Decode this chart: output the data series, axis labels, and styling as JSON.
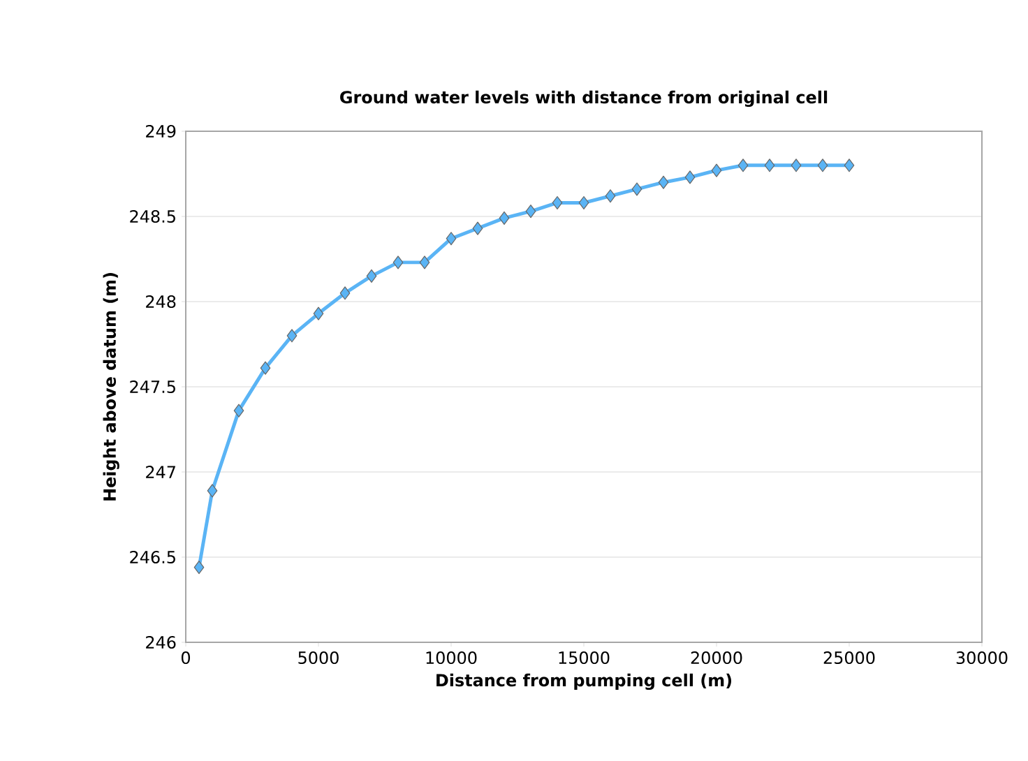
{
  "chart_data": {
    "type": "line",
    "title": "Ground water levels with distance from original cell",
    "xlabel": "Distance from pumping cell (m)",
    "ylabel": "Height above datum (m)",
    "x": [
      500,
      1000,
      2000,
      3000,
      4000,
      5000,
      6000,
      7000,
      8000,
      9000,
      10000,
      11000,
      12000,
      13000,
      14000,
      15000,
      16000,
      17000,
      18000,
      19000,
      20000,
      21000,
      22000,
      23000,
      24000,
      25000
    ],
    "series": [
      {
        "color": "#5ab4f5",
        "values": [
          246.44,
          246.89,
          247.36,
          247.61,
          247.8,
          247.93,
          248.05,
          248.15,
          248.23,
          248.23,
          248.37,
          248.43,
          248.49,
          248.53,
          248.58,
          248.58,
          248.62,
          248.66,
          248.7,
          248.73,
          248.77,
          248.8,
          248.8,
          248.8,
          248.8,
          248.8
        ]
      }
    ],
    "xlim": [
      0,
      30000
    ],
    "ylim": [
      246,
      249
    ],
    "xticks": [
      0,
      5000,
      10000,
      15000,
      20000,
      25000,
      30000
    ],
    "yticks": [
      246,
      246.5,
      247,
      247.5,
      248,
      248.5,
      249
    ],
    "grid": "y",
    "marker": "diamond",
    "line_style": "solid"
  }
}
